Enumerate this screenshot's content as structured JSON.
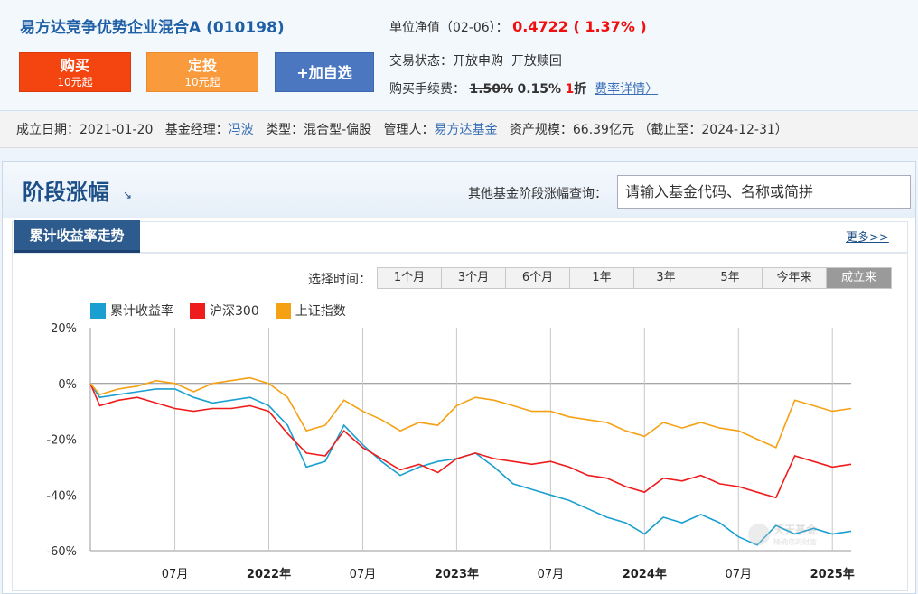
{
  "fund": {
    "name": "易方达竞争优势企业混合A (010198)",
    "buy": {
      "label": "购买",
      "sub": "10元起"
    },
    "sip": {
      "label": "定投",
      "sub": "10元起"
    },
    "favorite": "+加自选",
    "nav_label": "单位净值（02-06）：",
    "nav_value": "0.4722 ( 1.37% )",
    "trade_status_label": "交易状态：",
    "trade_status": "开放申购  开放赎回",
    "fee_label": "购买手续费：",
    "fee_original": "1.50%",
    "fee_current": "0.15%",
    "fee_discount_num": "1",
    "fee_discount_unit": "折",
    "fee_link": "费率详情〉"
  },
  "meta": {
    "inception_label": "成立日期：",
    "inception": "2021-01-20",
    "manager_label": "基金经理：",
    "manager": "冯波",
    "type_label": "类型：",
    "type": "混合型-偏股",
    "company_label": "管理人：",
    "company": "易方达基金",
    "aum_label": "资产规模：",
    "aum": "66.39亿元 （截止至：2024-12-31）"
  },
  "panel": {
    "title": "阶段涨幅",
    "search_label": "其他基金阶段涨幅查询：",
    "search_placeholder": "请输入基金代码、名称或简拼",
    "tab": "累计收益率走势",
    "more": "更多>>",
    "range_label": "选择时间：",
    "ranges": [
      "1个月",
      "3个月",
      "6个月",
      "1年",
      "3年",
      "5年",
      "今年来",
      "成立来"
    ],
    "active_range": "成立来"
  },
  "watermark": {
    "line1": "天天基金",
    "line2": "精确您的财富"
  },
  "chart_data": {
    "type": "line",
    "ylim": [
      -60,
      20
    ],
    "yticks": [
      "20%",
      "0%",
      "-20%",
      "-40%",
      "-60%"
    ],
    "x_labels": [
      "07月",
      "2022年",
      "07月",
      "2023年",
      "07月",
      "2024年",
      "07月",
      "2025年"
    ],
    "colors": {
      "fund": "#1a9fd0",
      "hs300": "#ee1c1c",
      "sh": "#f5a114"
    },
    "series": [
      {
        "name": "累计收益率",
        "color": "#1a9fd0",
        "x": [
          2021.05,
          2021.1,
          2021.2,
          2021.3,
          2021.4,
          2021.5,
          2021.6,
          2021.7,
          2021.8,
          2021.9,
          2022.0,
          2022.1,
          2022.2,
          2022.3,
          2022.4,
          2022.5,
          2022.6,
          2022.7,
          2022.8,
          2022.9,
          2023.0,
          2023.1,
          2023.2,
          2023.3,
          2023.4,
          2023.5,
          2023.6,
          2023.7,
          2023.8,
          2023.9,
          2024.0,
          2024.1,
          2024.2,
          2024.3,
          2024.4,
          2024.5,
          2024.6,
          2024.7,
          2024.8,
          2024.9,
          2025.0,
          2025.1
        ],
        "values": [
          0,
          -5,
          -4,
          -3,
          -2,
          -2,
          -5,
          -7,
          -6,
          -5,
          -8,
          -15,
          -30,
          -28,
          -15,
          -22,
          -28,
          -33,
          -30,
          -28,
          -27,
          -25,
          -30,
          -36,
          -38,
          -40,
          -42,
          -45,
          -48,
          -50,
          -54,
          -48,
          -50,
          -47,
          -50,
          -55,
          -58,
          -51,
          -54,
          -52,
          -54,
          -53
        ]
      },
      {
        "name": "沪深300",
        "color": "#ee1c1c",
        "x": [
          2021.05,
          2021.1,
          2021.2,
          2021.3,
          2021.4,
          2021.5,
          2021.6,
          2021.7,
          2021.8,
          2021.9,
          2022.0,
          2022.1,
          2022.2,
          2022.3,
          2022.4,
          2022.5,
          2022.6,
          2022.7,
          2022.8,
          2022.9,
          2023.0,
          2023.1,
          2023.2,
          2023.3,
          2023.4,
          2023.5,
          2023.6,
          2023.7,
          2023.8,
          2023.9,
          2024.0,
          2024.1,
          2024.2,
          2024.3,
          2024.4,
          2024.5,
          2024.6,
          2024.7,
          2024.8,
          2024.9,
          2025.0,
          2025.1
        ],
        "values": [
          0,
          -8,
          -6,
          -5,
          -7,
          -9,
          -10,
          -9,
          -9,
          -8,
          -10,
          -18,
          -25,
          -26,
          -17,
          -23,
          -27,
          -31,
          -29,
          -32,
          -27,
          -25,
          -27,
          -28,
          -29,
          -28,
          -30,
          -33,
          -34,
          -37,
          -39,
          -34,
          -35,
          -33,
          -36,
          -37,
          -39,
          -41,
          -26,
          -28,
          -30,
          -29
        ]
      },
      {
        "name": "上证指数",
        "color": "#f5a114",
        "x": [
          2021.05,
          2021.1,
          2021.2,
          2021.3,
          2021.4,
          2021.5,
          2021.6,
          2021.7,
          2021.8,
          2021.9,
          2022.0,
          2022.1,
          2022.2,
          2022.3,
          2022.4,
          2022.5,
          2022.6,
          2022.7,
          2022.8,
          2022.9,
          2023.0,
          2023.1,
          2023.2,
          2023.3,
          2023.4,
          2023.5,
          2023.6,
          2023.7,
          2023.8,
          2023.9,
          2024.0,
          2024.1,
          2024.2,
          2024.3,
          2024.4,
          2024.5,
          2024.6,
          2024.7,
          2024.8,
          2024.9,
          2025.0,
          2025.1
        ],
        "values": [
          0,
          -4,
          -2,
          -1,
          1,
          0,
          -3,
          0,
          1,
          2,
          0,
          -5,
          -17,
          -15,
          -6,
          -10,
          -13,
          -17,
          -14,
          -15,
          -8,
          -5,
          -6,
          -8,
          -10,
          -10,
          -12,
          -13,
          -14,
          -17,
          -19,
          -14,
          -16,
          -14,
          -16,
          -17,
          -20,
          -23,
          -6,
          -8,
          -10,
          -9
        ]
      }
    ]
  }
}
